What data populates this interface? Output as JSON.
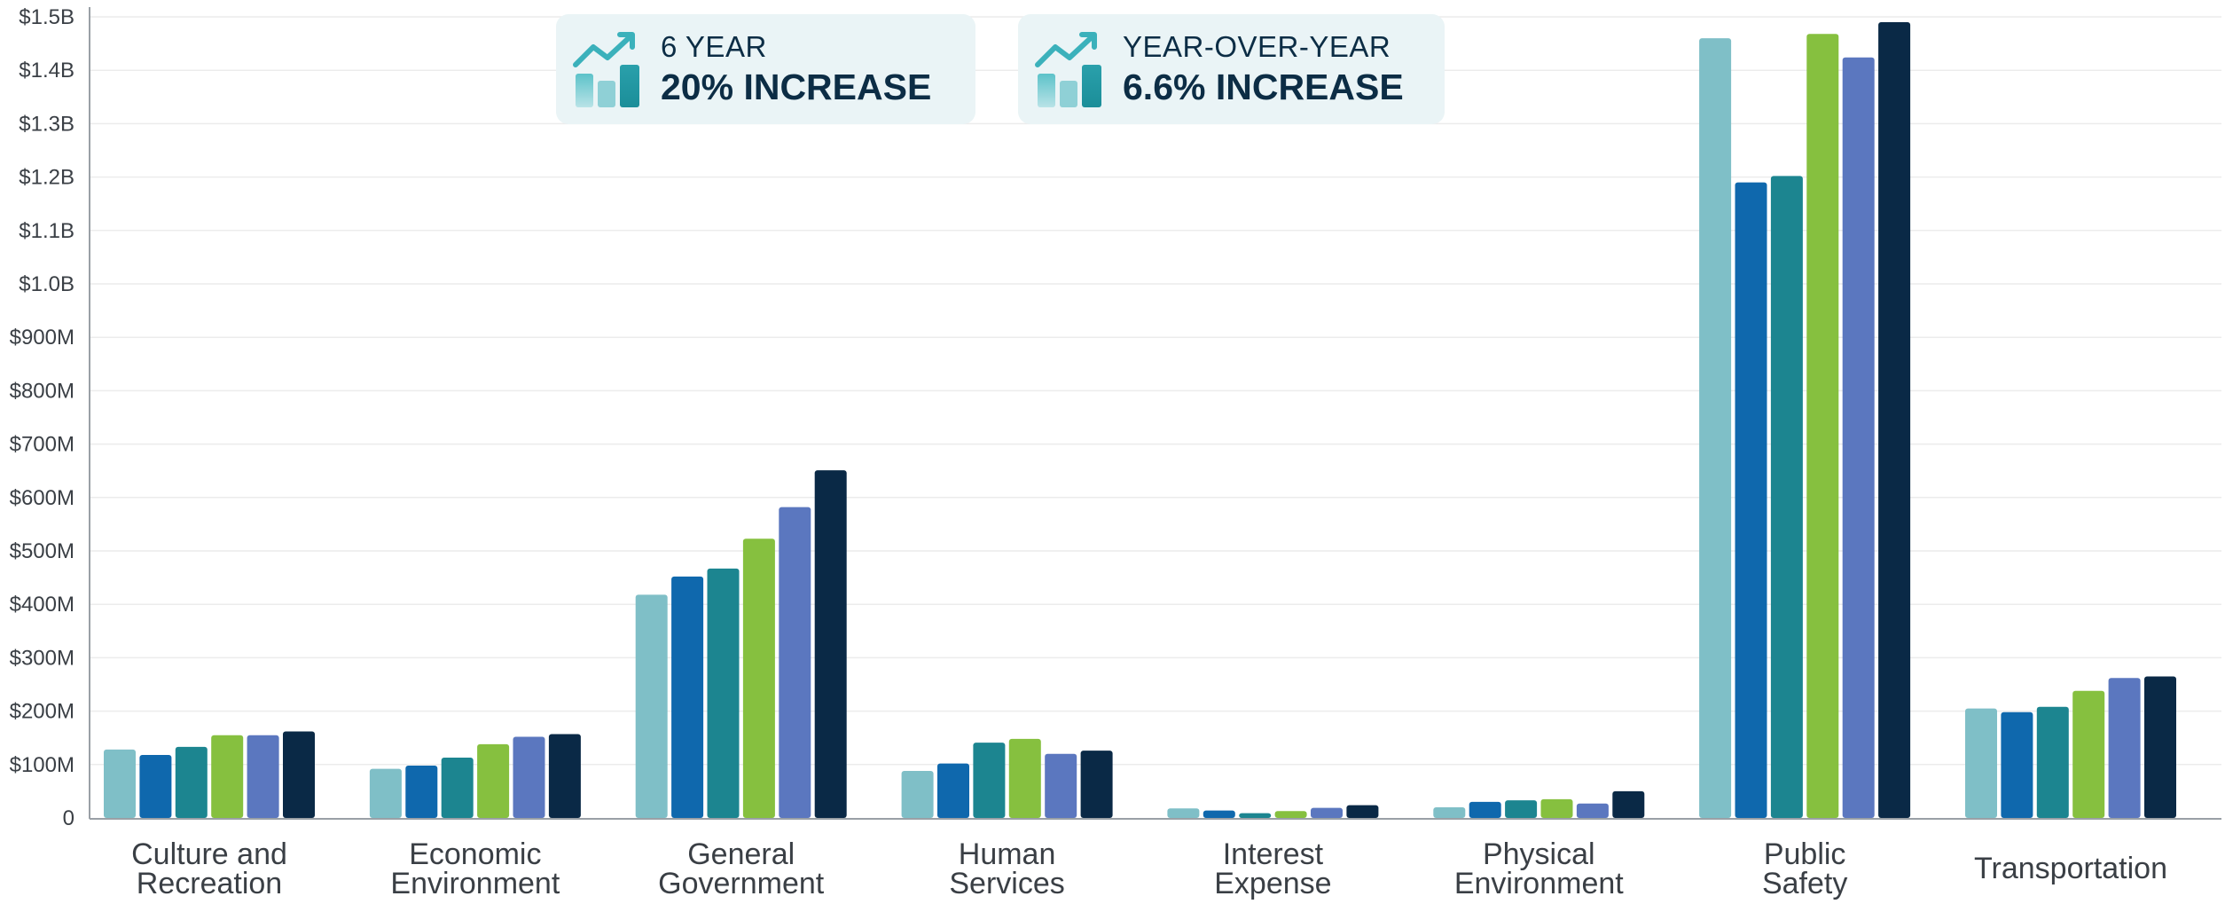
{
  "callouts": [
    {
      "label": "6 YEAR",
      "value": "20% INCREASE",
      "icon": "chart-trend-up-icon"
    },
    {
      "label": "YEAR-OVER-YEAR",
      "value": "6.6% INCREASE",
      "icon": "chart-trend-up-icon"
    }
  ],
  "chart_data": {
    "type": "bar",
    "title": "",
    "xlabel": "",
    "ylabel": "",
    "ylim": [
      0,
      1500
    ],
    "y_unit": "millions of dollars",
    "yticks": [
      0,
      100,
      200,
      300,
      400,
      500,
      600,
      700,
      800,
      900,
      1000,
      1100,
      1200,
      1300,
      1400,
      1500
    ],
    "ytick_labels": [
      "0",
      "$100M",
      "$200M",
      "$300M",
      "$400M",
      "$500M",
      "$600M",
      "$700M",
      "$800M",
      "$900M",
      "$1.0B",
      "$1.1B",
      "$1.2B",
      "$1.3B",
      "$1.4B",
      "$1.5B"
    ],
    "grid": true,
    "legend": "none",
    "categories": [
      [
        "Culture and",
        "Recreation"
      ],
      [
        "Economic",
        "Environment"
      ],
      [
        "General",
        "Government"
      ],
      [
        "Human",
        "Services"
      ],
      [
        "Interest",
        "Expense"
      ],
      [
        "Physical",
        "Environment"
      ],
      [
        "Public",
        "Safety"
      ],
      [
        "Transportation"
      ]
    ],
    "series_colors": [
      "#7fbfc7",
      "#0f68ad",
      "#1c8590",
      "#86c03f",
      "#5b77bf",
      "#0a2946"
    ],
    "series": [
      {
        "values": [
          128,
          92,
          418,
          88,
          18,
          20,
          1460,
          205
        ]
      },
      {
        "values": [
          118,
          98,
          452,
          102,
          14,
          30,
          1190,
          198
        ]
      },
      {
        "values": [
          133,
          113,
          467,
          141,
          9,
          33,
          1202,
          208
        ]
      },
      {
        "values": [
          155,
          138,
          523,
          148,
          13,
          35,
          1468,
          238
        ]
      },
      {
        "values": [
          155,
          152,
          582,
          120,
          19,
          27,
          1424,
          262
        ]
      },
      {
        "values": [
          162,
          157,
          651,
          126,
          24,
          50,
          1490,
          265
        ]
      }
    ]
  }
}
